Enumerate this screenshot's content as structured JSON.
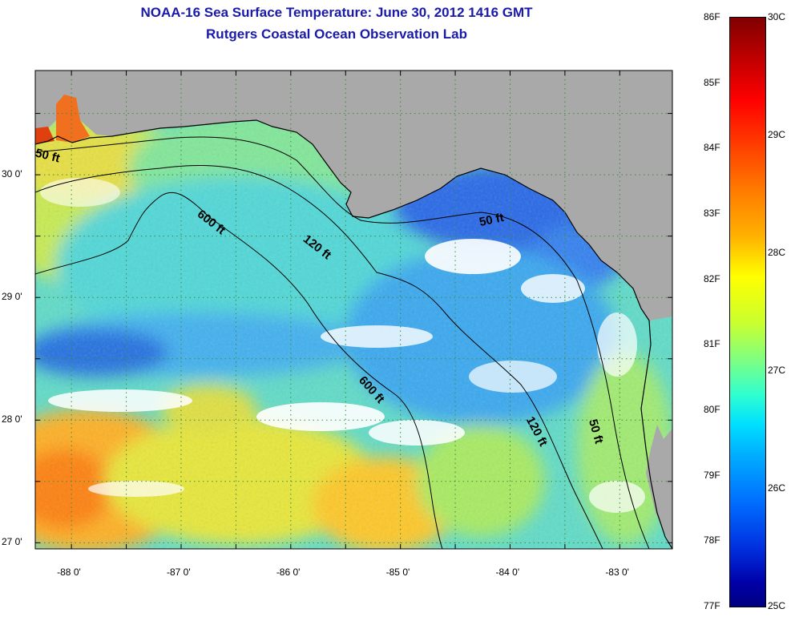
{
  "title": {
    "line1": "NOAA-16 Sea Surface Temperature:  June 30, 2012 1416 GMT",
    "line2": "Rutgers Coastal Ocean Observation Lab"
  },
  "map": {
    "lon_min": -88.33,
    "lon_max": -82.52,
    "lat_min": 26.95,
    "lat_max": 30.85,
    "x_ticks": [
      {
        "value": -88,
        "label": "-88 0'"
      },
      {
        "value": -87,
        "label": "-87 0'"
      },
      {
        "value": -86,
        "label": "-86 0'"
      },
      {
        "value": -85,
        "label": "-85 0'"
      },
      {
        "value": -84,
        "label": "-84 0'"
      },
      {
        "value": -83,
        "label": "-83 0'"
      }
    ],
    "y_ticks": [
      {
        "value": 30,
        "label": "30 0'"
      },
      {
        "value": 29,
        "label": "29 0'"
      },
      {
        "value": 28,
        "label": "28 0'"
      },
      {
        "value": 27,
        "label": "27 0'"
      }
    ],
    "isobaths": [
      {
        "label": "50 ft",
        "depth_ft": 50
      },
      {
        "label": "120 ft",
        "depth_ft": 120
      },
      {
        "label": "600 ft",
        "depth_ft": 600
      },
      {
        "label": "600 ft",
        "depth_ft": 600
      },
      {
        "label": "50 ft",
        "depth_ft": 50
      },
      {
        "label": "120 ft",
        "depth_ft": 120
      },
      {
        "label": "50 ft",
        "depth_ft": 50
      }
    ],
    "colors": {
      "land": "#a9a9a9",
      "cloud": "#ffffff",
      "grid": "#3c8c3c"
    }
  },
  "colorbar": {
    "fahrenheit": [
      "86F",
      "85F",
      "84F",
      "83F",
      "82F",
      "81F",
      "80F",
      "79F",
      "78F",
      "77F"
    ],
    "celsius": [
      "30C",
      "29C",
      "28C",
      "27C",
      "26C",
      "25C"
    ],
    "min_f": 77,
    "max_f": 86,
    "min_c": 25,
    "max_c": 30
  }
}
